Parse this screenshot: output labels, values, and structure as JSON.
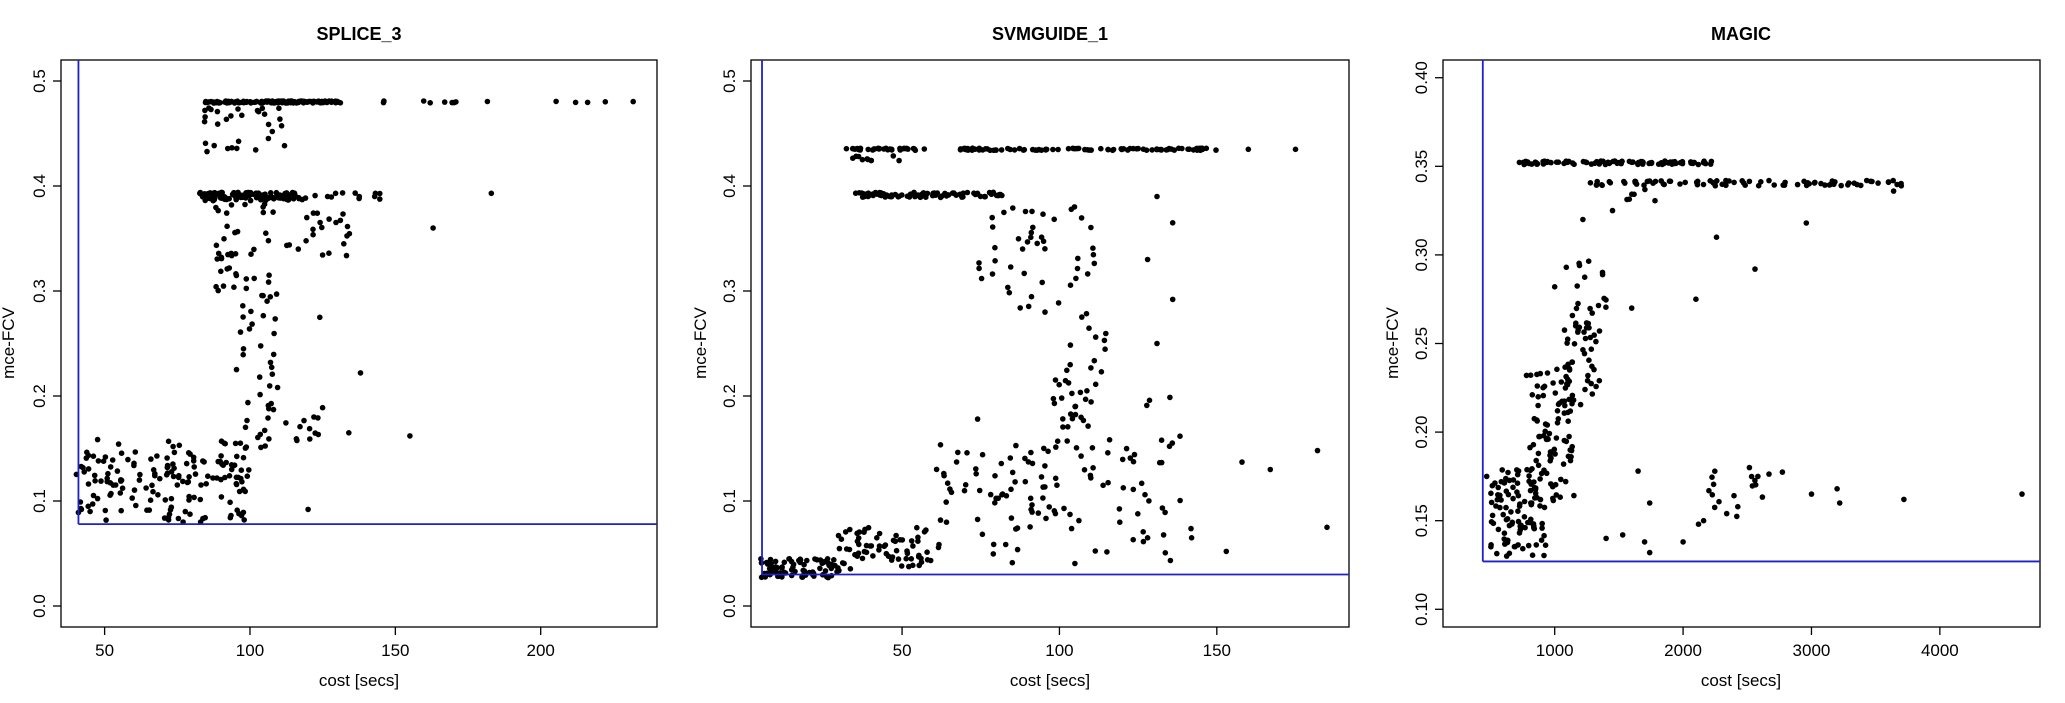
{
  "chart_data": [
    {
      "type": "scatter",
      "title": "SPLICE_3",
      "xlabel": "cost [secs]",
      "ylabel": "mce-FCV",
      "xlim": [
        35,
        240
      ],
      "ylim": [
        -0.02,
        0.52
      ],
      "xticks": [
        50,
        100,
        150,
        200
      ],
      "yticks": [
        0.0,
        0.1,
        0.2,
        0.3,
        0.4,
        0.5
      ],
      "ytick_labels": [
        "0.0",
        "0.1",
        "0.2",
        "0.3",
        "0.4",
        "0.5"
      ],
      "grid": false,
      "point_color": "#000000",
      "frontier_color": "#1f1fcc",
      "frontier": {
        "x_min": 41,
        "y_min": 0.078
      },
      "clusters": [
        {
          "n": 130,
          "x": [
            84,
            132
          ],
          "y": [
            0.479,
            0.481
          ]
        },
        {
          "n": 14,
          "x": [
            132,
            236
          ],
          "y": [
            0.479,
            0.481
          ]
        },
        {
          "n": 30,
          "x": [
            84,
            112
          ],
          "y": [
            0.43,
            0.475
          ]
        },
        {
          "n": 110,
          "x": [
            82,
            120
          ],
          "y": [
            0.386,
            0.394
          ]
        },
        {
          "n": 12,
          "x": [
            120,
            145
          ],
          "y": [
            0.386,
            0.394
          ]
        },
        {
          "n": 40,
          "x": [
            88,
            108
          ],
          "y": [
            0.3,
            0.385
          ]
        },
        {
          "n": 22,
          "x": [
            112,
            135
          ],
          "y": [
            0.33,
            0.375
          ]
        },
        {
          "n": 26,
          "x": [
            95,
            110
          ],
          "y": [
            0.2,
            0.3
          ]
        },
        {
          "n": 90,
          "x": [
            40,
            100
          ],
          "y": [
            0.12,
            0.16
          ]
        },
        {
          "n": 70,
          "x": [
            40,
            100
          ],
          "y": [
            0.08,
            0.12
          ]
        },
        {
          "n": 25,
          "x": [
            95,
            125
          ],
          "y": [
            0.15,
            0.2
          ]
        }
      ],
      "points": [
        {
          "x": 183,
          "y": 0.393
        },
        {
          "x": 163,
          "y": 0.36
        },
        {
          "x": 138,
          "y": 0.222
        },
        {
          "x": 155,
          "y": 0.162
        },
        {
          "x": 134,
          "y": 0.165
        },
        {
          "x": 124,
          "y": 0.275
        },
        {
          "x": 122,
          "y": 0.18
        },
        {
          "x": 120,
          "y": 0.092
        },
        {
          "x": 98,
          "y": 0.082
        },
        {
          "x": 83,
          "y": 0.08
        },
        {
          "x": 77,
          "y": 0.08
        },
        {
          "x": 72,
          "y": 0.082
        },
        {
          "x": 45,
          "y": 0.09
        },
        {
          "x": 42,
          "y": 0.092
        },
        {
          "x": 41,
          "y": 0.089
        }
      ]
    },
    {
      "type": "scatter",
      "title": "SVMGUIDE_1",
      "xlabel": "cost [secs]",
      "ylabel": "mce-FCV",
      "xlim": [
        2,
        192
      ],
      "ylim": [
        -0.02,
        0.52
      ],
      "xticks": [
        50,
        100,
        150
      ],
      "yticks": [
        0.0,
        0.1,
        0.2,
        0.3,
        0.4,
        0.5
      ],
      "ytick_labels": [
        "0.0",
        "0.1",
        "0.2",
        "0.3",
        "0.4",
        "0.5"
      ],
      "grid": false,
      "point_color": "#000000",
      "frontier_color": "#1f1fcc",
      "frontier": {
        "x_min": 5.5,
        "y_min": 0.03
      },
      "clusters": [
        {
          "n": 35,
          "x": [
            30,
            58
          ],
          "y": [
            0.434,
            0.436
          ]
        },
        {
          "n": 95,
          "x": [
            68,
            150
          ],
          "y": [
            0.434,
            0.436
          ]
        },
        {
          "n": 10,
          "x": [
            34,
            50
          ],
          "y": [
            0.424,
            0.43
          ]
        },
        {
          "n": 90,
          "x": [
            35,
            82
          ],
          "y": [
            0.389,
            0.394
          ]
        },
        {
          "n": 30,
          "x": [
            74,
            95
          ],
          "y": [
            0.28,
            0.385
          ]
        },
        {
          "n": 30,
          "x": [
            93,
            115
          ],
          "y": [
            0.2,
            0.385
          ]
        },
        {
          "n": 30,
          "x": [
            105,
            140
          ],
          "y": [
            0.1,
            0.2
          ]
        },
        {
          "n": 80,
          "x": [
            5,
            30
          ],
          "y": [
            0.027,
            0.045
          ]
        },
        {
          "n": 70,
          "x": [
            28,
            62
          ],
          "y": [
            0.035,
            0.075
          ]
        },
        {
          "n": 60,
          "x": [
            60,
            100
          ],
          "y": [
            0.06,
            0.16
          ]
        },
        {
          "n": 25,
          "x": [
            98,
            112
          ],
          "y": [
            0.15,
            0.23
          ]
        },
        {
          "n": 28,
          "x": [
            75,
            150
          ],
          "y": [
            0.04,
            0.1
          ]
        }
      ],
      "points": [
        {
          "x": 175,
          "y": 0.435
        },
        {
          "x": 160,
          "y": 0.435
        },
        {
          "x": 136,
          "y": 0.365
        },
        {
          "x": 131,
          "y": 0.39
        },
        {
          "x": 128,
          "y": 0.33
        },
        {
          "x": 131,
          "y": 0.25
        },
        {
          "x": 136,
          "y": 0.292
        },
        {
          "x": 167,
          "y": 0.13
        },
        {
          "x": 158,
          "y": 0.137
        },
        {
          "x": 182,
          "y": 0.148
        },
        {
          "x": 185,
          "y": 0.075
        },
        {
          "x": 153,
          "y": 0.052
        },
        {
          "x": 142,
          "y": 0.065
        },
        {
          "x": 128,
          "y": 0.065
        },
        {
          "x": 74,
          "y": 0.178
        }
      ]
    },
    {
      "type": "scatter",
      "title": "MAGIC",
      "xlabel": "cost [secs]",
      "ylabel": "mce-FCV",
      "xlim": [
        130,
        4780
      ],
      "ylim": [
        0.09,
        0.41
      ],
      "xticks": [
        1000,
        2000,
        3000,
        4000
      ],
      "yticks": [
        0.1,
        0.15,
        0.2,
        0.25,
        0.3,
        0.35,
        0.4
      ],
      "ytick_labels": [
        "0.10",
        "0.15",
        "0.20",
        "0.25",
        "0.30",
        "0.35",
        "0.40"
      ],
      "grid": false,
      "point_color": "#000000",
      "frontier_color": "#1f1fcc",
      "frontier": {
        "x_min": 440,
        "y_min": 0.127
      },
      "clusters": [
        {
          "n": 100,
          "x": [
            720,
            2260
          ],
          "y": [
            0.351,
            0.353
          ]
        },
        {
          "n": 80,
          "x": [
            1240,
            3700
          ],
          "y": [
            0.339,
            0.342
          ]
        },
        {
          "n": 6,
          "x": [
            1500,
            1800
          ],
          "y": [
            0.33,
            0.337
          ]
        },
        {
          "n": 100,
          "x": [
            500,
            950
          ],
          "y": [
            0.13,
            0.18
          ]
        },
        {
          "n": 90,
          "x": [
            800,
            1150
          ],
          "y": [
            0.16,
            0.24
          ]
        },
        {
          "n": 45,
          "x": [
            1050,
            1350
          ],
          "y": [
            0.21,
            0.27
          ]
        },
        {
          "n": 12,
          "x": [
            1150,
            1400
          ],
          "y": [
            0.27,
            0.3
          ]
        },
        {
          "n": 20,
          "x": [
            2200,
            2800
          ],
          "y": [
            0.15,
            0.18
          ]
        }
      ],
      "points": [
        {
          "x": 470,
          "y": 0.175
        },
        {
          "x": 780,
          "y": 0.232
        },
        {
          "x": 1000,
          "y": 0.282
        },
        {
          "x": 1090,
          "y": 0.293
        },
        {
          "x": 1220,
          "y": 0.32
        },
        {
          "x": 1450,
          "y": 0.325
        },
        {
          "x": 1600,
          "y": 0.27
        },
        {
          "x": 1650,
          "y": 0.178
        },
        {
          "x": 1400,
          "y": 0.14
        },
        {
          "x": 1530,
          "y": 0.142
        },
        {
          "x": 1740,
          "y": 0.16
        },
        {
          "x": 1700,
          "y": 0.138
        },
        {
          "x": 1740,
          "y": 0.132
        },
        {
          "x": 2000,
          "y": 0.138
        },
        {
          "x": 2100,
          "y": 0.275
        },
        {
          "x": 2120,
          "y": 0.148
        },
        {
          "x": 2160,
          "y": 0.15
        },
        {
          "x": 2260,
          "y": 0.31
        },
        {
          "x": 2560,
          "y": 0.292
        },
        {
          "x": 2960,
          "y": 0.318
        },
        {
          "x": 3000,
          "y": 0.165
        },
        {
          "x": 3200,
          "y": 0.168
        },
        {
          "x": 3220,
          "y": 0.16
        },
        {
          "x": 3720,
          "y": 0.162
        },
        {
          "x": 4640,
          "y": 0.165
        },
        {
          "x": 3430,
          "y": 0.342
        },
        {
          "x": 3600,
          "y": 0.341
        },
        {
          "x": 3700,
          "y": 0.339
        },
        {
          "x": 3640,
          "y": 0.336
        }
      ]
    }
  ]
}
